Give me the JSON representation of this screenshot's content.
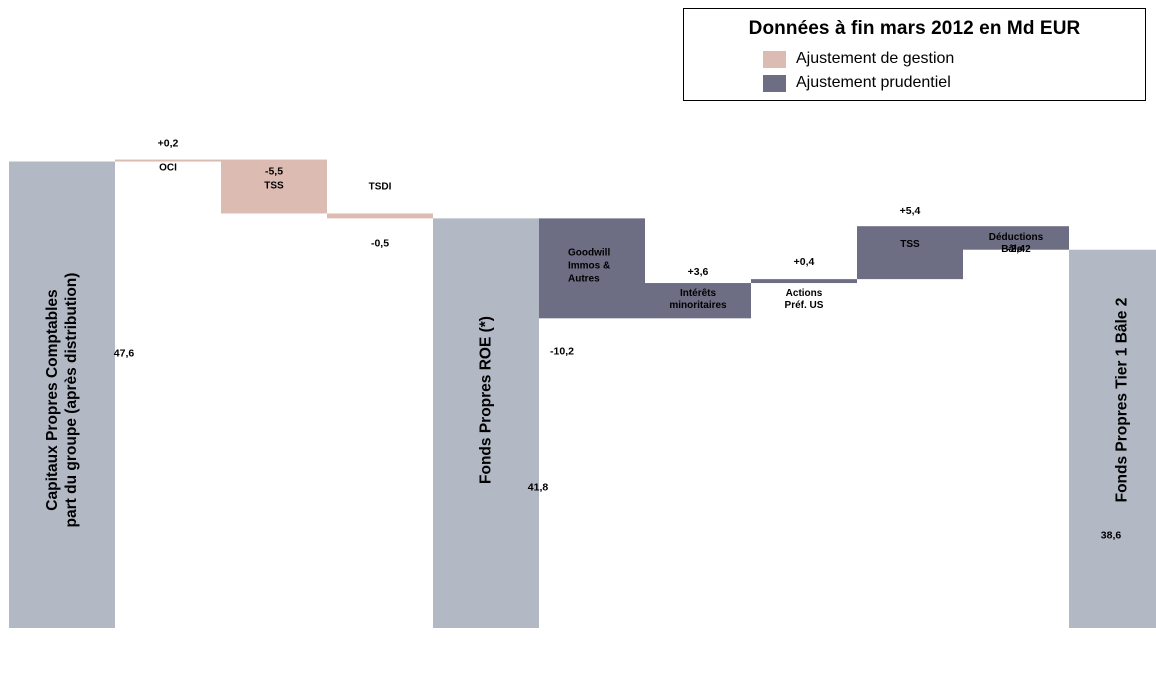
{
  "colors": {
    "total": "#b2b8c4",
    "gestion": "#dcbcb2",
    "prudentiel": "#6d6d84"
  },
  "legend": {
    "title": "Données à fin mars 2012 en Md EUR",
    "items": [
      {
        "label": "Ajustement de gestion",
        "kind": "gestion"
      },
      {
        "label": "Ajustement prudentiel",
        "kind": "prudentiel"
      }
    ]
  },
  "chart_data": {
    "type": "bar",
    "subtype": "waterfall",
    "unit": "Md EUR",
    "bars": [
      {
        "kind": "total",
        "value": 47.6,
        "start": 0,
        "end": 47.6,
        "label": "47,6",
        "category_lines": [
          "Capitaux Propres Comptables",
          "part du groupe (après distribution)"
        ]
      },
      {
        "kind": "gestion",
        "value": 0.2,
        "start": 47.6,
        "end": 47.8,
        "label": "+0,2",
        "name": "OCI"
      },
      {
        "kind": "gestion",
        "value": -5.5,
        "start": 47.8,
        "end": 42.3,
        "label": "-5,5",
        "name": "TSS"
      },
      {
        "kind": "gestion",
        "value": -0.5,
        "start": 42.3,
        "end": 41.8,
        "label": "-0,5",
        "name": "TSDI"
      },
      {
        "kind": "total",
        "value": 41.8,
        "start": 0,
        "end": 41.8,
        "label": "41,8",
        "category_lines": [
          "Fonds Propres ROE (*)"
        ]
      },
      {
        "kind": "prudentiel",
        "value": -10.2,
        "start": 41.8,
        "end": 31.6,
        "label": "-10,2",
        "name_lines": [
          "Goodwill",
          "Immos &",
          "Autres"
        ]
      },
      {
        "kind": "prudentiel",
        "value": 3.6,
        "start": 31.6,
        "end": 35.2,
        "label": "+3,6",
        "name_lines": [
          "Intérêts",
          "minoritaires"
        ]
      },
      {
        "kind": "prudentiel",
        "value": 0.4,
        "start": 35.2,
        "end": 35.6,
        "label": "+0,4",
        "name_lines": [
          "Actions",
          "Préf.  US"
        ]
      },
      {
        "kind": "prudentiel",
        "value": 5.4,
        "start": 35.6,
        "end": 41.0,
        "label": "+5,4",
        "name": "TSS"
      },
      {
        "kind": "prudentiel",
        "value": -2.4,
        "start": 41.0,
        "end": 38.6,
        "label": "-2,4",
        "name_lines": [
          "Déductions",
          "Bâle 2"
        ]
      },
      {
        "kind": "total",
        "value": 38.6,
        "start": 0,
        "end": 38.6,
        "label": "38,6",
        "category_lines": [
          "Fonds Propres Tier 1 Bâle 2"
        ]
      }
    ],
    "grid": false,
    "legend_position": "top-right"
  }
}
